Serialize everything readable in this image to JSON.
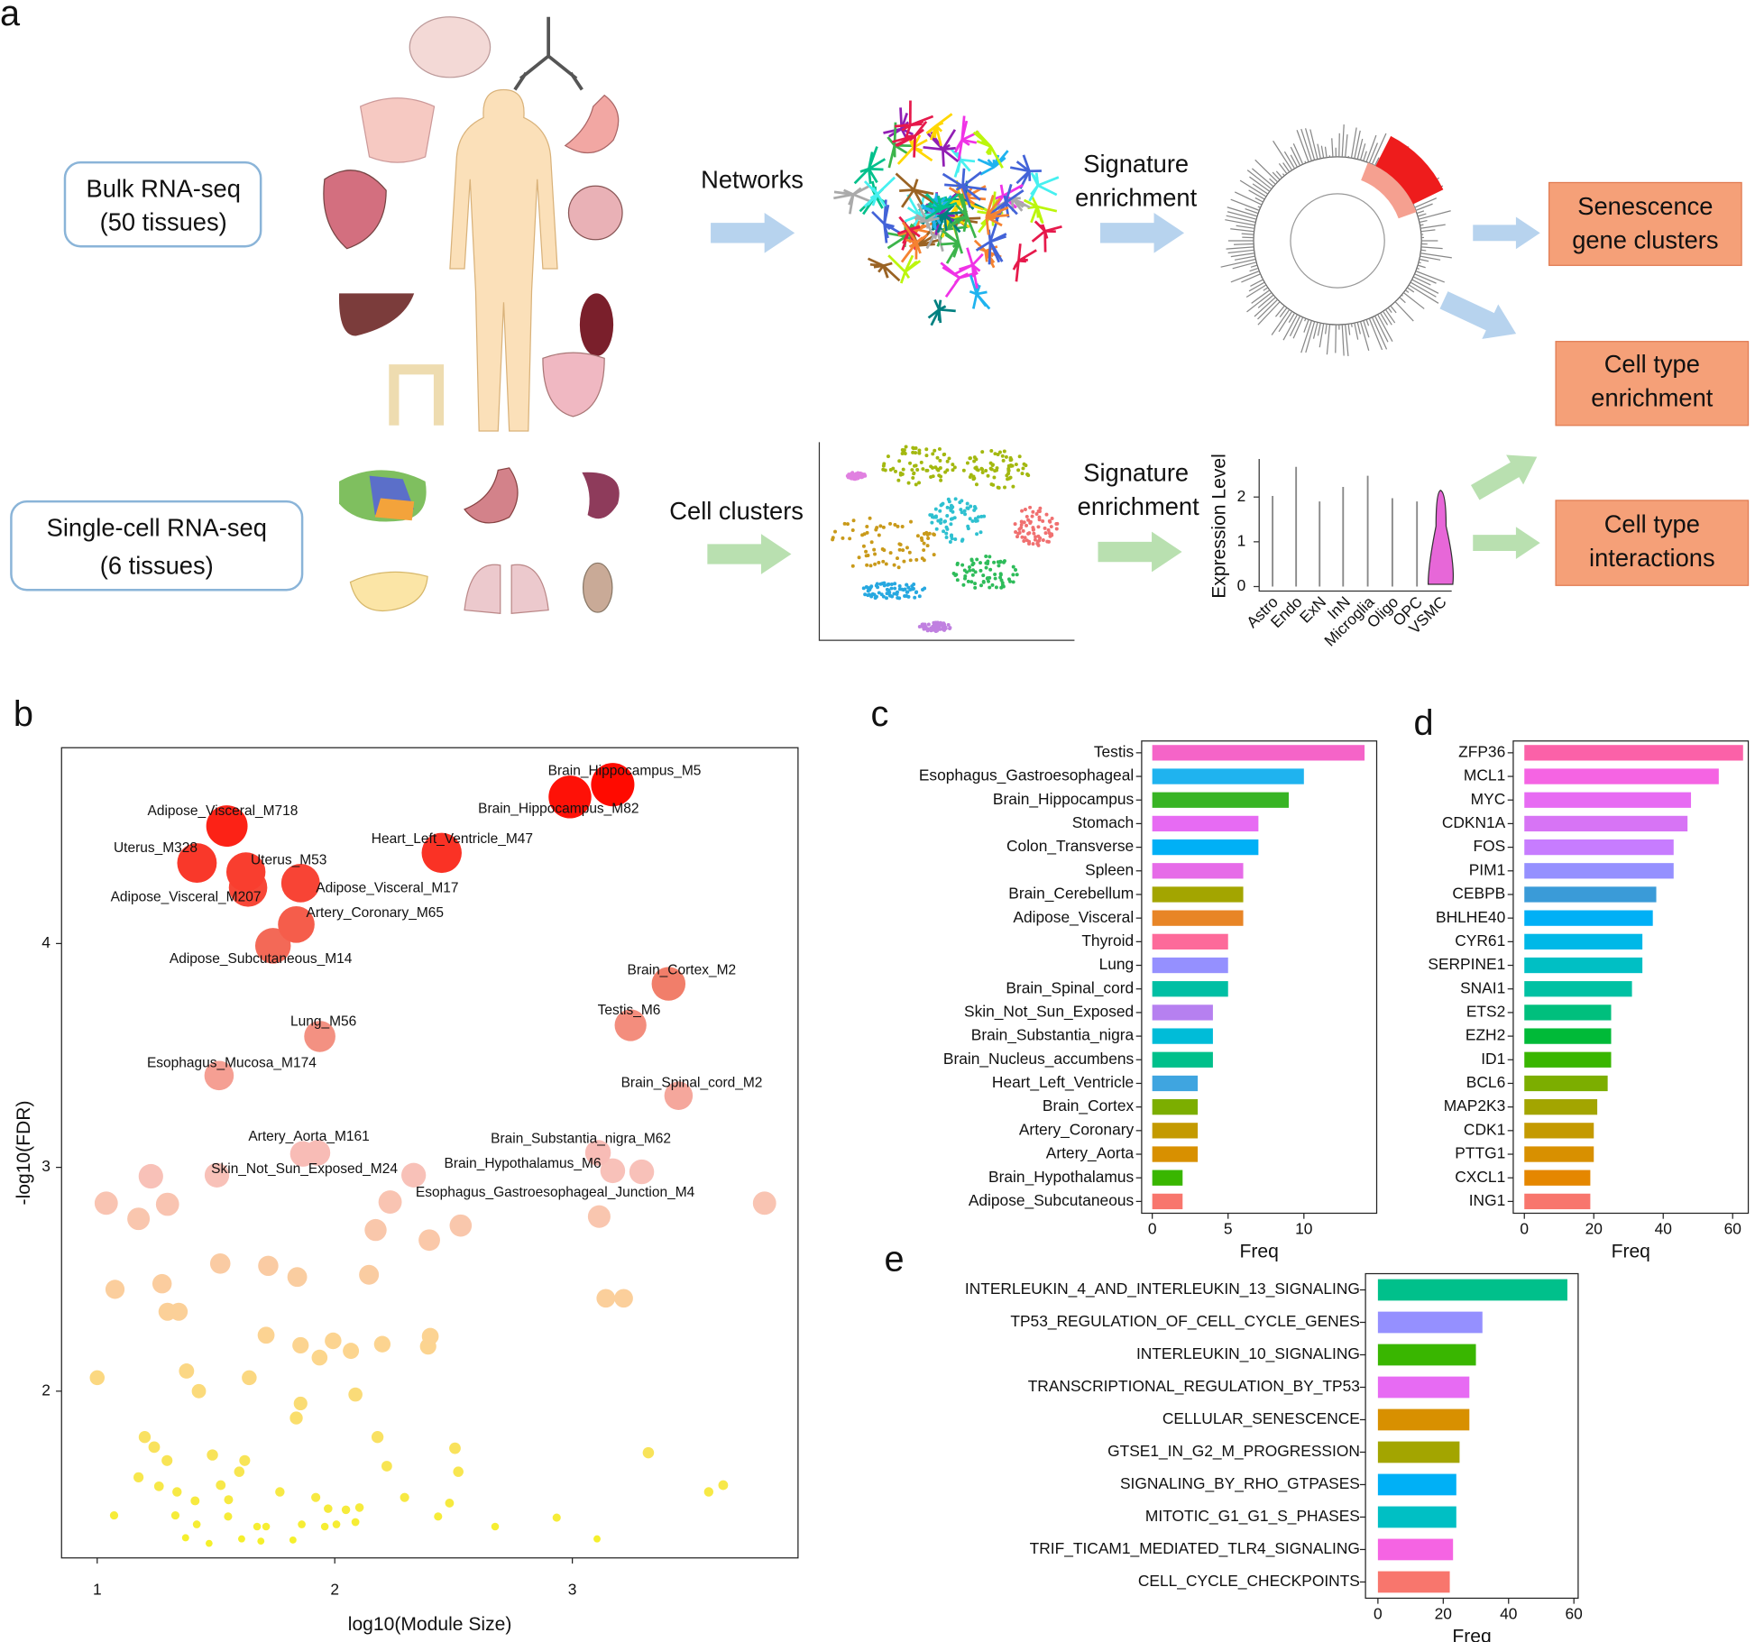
{
  "diagram": {
    "panel": "a",
    "bulk": {
      "title": "Bulk RNA-seq",
      "subtitle": "(50 tissues)"
    },
    "single_cell": {
      "title": "Single-cell RNA-seq",
      "subtitle": "(6 tissues)"
    },
    "steps": {
      "networks": "Networks",
      "bulk_enrichment": [
        "Signature",
        "enrichment"
      ],
      "cell_clusters": "Cell clusters",
      "sc_enrichment": [
        "Signature",
        "enrichment"
      ]
    },
    "outputs": [
      [
        "Senescence",
        "gene clusters"
      ],
      [
        "Cell type",
        "enrichment"
      ],
      [
        "Cell type",
        "interactions"
      ]
    ],
    "violin": {
      "ylabel": "Expression Level",
      "yticks": [
        0,
        1,
        2
      ],
      "categories": [
        "Astro",
        "Endo",
        "ExN",
        "InN",
        "Microglia",
        "Oligo",
        "OPC",
        "VSMC"
      ]
    }
  },
  "chart_data": [
    {
      "type": "scatter",
      "panel": "b",
      "xlabel": "log10(Module Size)",
      "ylabel": "-log10(FDR)",
      "xlim": [
        0.85,
        3.95
      ],
      "ylim": [
        1.255,
        4.875
      ],
      "xticks": [
        1,
        2,
        3
      ],
      "yticks": [
        2,
        3,
        4
      ],
      "color_scale": [
        "#f5f02a",
        "#fcd58e",
        "#f8c0bb",
        "#f17a66",
        "#ff0a00"
      ],
      "labels": [
        "Brain_Hippocampus_M5",
        "Brain_Hippocampus_M82",
        "Adipose_Visceral_M718",
        "Uterus_M328",
        "Uterus_M53",
        "Heart_Left_Ventricle_M47",
        "Adipose_Visceral_M207",
        "Adipose_Visceral_M17",
        "Artery_Coronary_M65",
        "Adipose_Subcutaneous_M14",
        "Brain_Cortex_M2",
        "Testis_M6",
        "Lung_M56",
        "Esophagus_Mucosa_M174",
        "Brain_Spinal_cord_M2",
        "Artery_Aorta_M161",
        "Skin_Not_Sun_Exposed_M24",
        "Brain_Substantia_nigra_M62",
        "Brain_Hypothalamus_M6",
        "Esophagus_Gastroesophageal_Junction_M4",
        null,
        null,
        null,
        null,
        null,
        null,
        null,
        null,
        null,
        null,
        null,
        null,
        null,
        null,
        null,
        null,
        null,
        null,
        null,
        null,
        null,
        null,
        null,
        null,
        null,
        null,
        null,
        null,
        null,
        null,
        null,
        null,
        null,
        null,
        null,
        null,
        null,
        null,
        null,
        null,
        null,
        null,
        null,
        null,
        null,
        null,
        null,
        null,
        null,
        null,
        null,
        null,
        null,
        null,
        null,
        null,
        null,
        null,
        null,
        null,
        null,
        null,
        null,
        null,
        null,
        null,
        null,
        null,
        null,
        null,
        null,
        null,
        null,
        null,
        null,
        null,
        null,
        null,
        null,
        null,
        null,
        null
      ],
      "x": [
        3.17,
        2.99,
        1.546,
        1.42,
        1.626,
        2.45,
        1.635,
        1.856,
        1.838,
        1.74,
        3.405,
        3.245,
        1.937,
        1.513,
        3.447,
        1.927,
        1.504,
        3.108,
        3.17,
        3.113,
        1.226,
        1.038,
        1.174,
        1.296,
        1.866,
        2.332,
        2.233,
        2.172,
        2.398,
        2.53,
        3.292,
        3.809,
        1.518,
        1.72,
        1.842,
        2.144,
        1.273,
        1.075,
        1.296,
        1.343,
        3.141,
        3.216,
        1.711,
        2.402,
        2.393,
        1.856,
        1.993,
        1.936,
        2.068,
        2.2,
        1.376,
        1.64,
        1.0,
        1.428,
        1.856,
        2.087,
        1.838,
        2.18,
        1.2,
        1.24,
        1.294,
        1.485,
        1.621,
        1.598,
        1.174,
        2.219,
        2.506,
        2.52,
        3.32,
        3.574,
        3.635,
        1.26,
        1.336,
        1.52,
        1.553,
        1.769,
        1.412,
        1.92,
        1.972,
        2.047,
        2.104,
        2.294,
        2.483,
        1.071,
        1.329,
        1.419,
        1.551,
        1.673,
        1.711,
        1.861,
        1.958,
        2.007,
        2.087,
        2.435,
        2.675,
        2.934,
        1.608,
        1.689,
        1.824,
        1.471,
        3.104,
        1.372
      ],
      "y": [
        4.71,
        4.655,
        4.525,
        4.36,
        4.32,
        4.405,
        4.25,
        4.27,
        4.085,
        3.99,
        3.82,
        3.635,
        3.585,
        3.41,
        3.32,
        3.065,
        2.965,
        3.065,
        2.985,
        2.78,
        2.96,
        2.84,
        2.77,
        2.835,
        3.06,
        2.965,
        2.845,
        2.72,
        2.675,
        2.74,
        2.98,
        2.84,
        2.57,
        2.56,
        2.51,
        2.52,
        2.48,
        2.455,
        2.355,
        2.355,
        2.415,
        2.415,
        2.25,
        2.245,
        2.2,
        2.205,
        2.225,
        2.15,
        2.18,
        2.21,
        2.09,
        2.06,
        2.06,
        2.0,
        1.945,
        1.985,
        1.88,
        1.795,
        1.795,
        1.75,
        1.69,
        1.715,
        1.69,
        1.64,
        1.615,
        1.665,
        1.745,
        1.64,
        1.725,
        1.55,
        1.58,
        1.575,
        1.55,
        1.58,
        1.515,
        1.55,
        1.51,
        1.525,
        1.475,
        1.47,
        1.48,
        1.525,
        1.5,
        1.445,
        1.445,
        1.405,
        1.44,
        1.395,
        1.395,
        1.405,
        1.395,
        1.405,
        1.415,
        1.44,
        1.395,
        1.435,
        1.34,
        1.33,
        1.335,
        1.32,
        1.34,
        1.345
      ]
    },
    {
      "type": "hbar",
      "panel": "c",
      "xlabel": "Freq",
      "xlim": [
        -0.7,
        14.8
      ],
      "xticks": [
        0,
        5,
        10
      ],
      "categories": [
        "Testis",
        "Esophagus_Gastroesophageal",
        "Brain_Hippocampus",
        "Stomach",
        "Colon_Transverse",
        "Spleen",
        "Brain_Cerebellum",
        "Adipose_Visceral",
        "Thyroid",
        "Lung",
        "Brain_Spinal_cord",
        "Skin_Not_Sun_Exposed",
        "Brain_Substantia_nigra",
        "Brain_Nucleus_accumbens",
        "Heart_Left_Ventricle",
        "Brain_Cortex",
        "Artery_Coronary",
        "Artery_Aorta",
        "Brain_Hypothalamus",
        "Adipose_Subcutaneous"
      ],
      "values": [
        14,
        10,
        9,
        7,
        7,
        6,
        6,
        6,
        5,
        5,
        5,
        4,
        4,
        4,
        3,
        3,
        3,
        3,
        2,
        2
      ],
      "colors": [
        "#f564c8",
        "#1fb3ef",
        "#38b424",
        "#e76bf3",
        "#00b0f6",
        "#e66be8",
        "#a3a500",
        "#e88526",
        "#fd6a9a",
        "#9590ff",
        "#00bfa4",
        "#b680f0",
        "#00bcd8",
        "#00c08b",
        "#3fa5e0",
        "#7cae00",
        "#c49a00",
        "#d89000",
        "#39b600",
        "#f8766d"
      ]
    },
    {
      "type": "hbar",
      "panel": "d",
      "xlabel": "Freq",
      "xlim": [
        -3.2,
        64.5
      ],
      "xticks": [
        0,
        20,
        40,
        60
      ],
      "categories": [
        "ZFP36",
        "MCL1",
        "MYC",
        "CDKN1A",
        "FOS",
        "PIM1",
        "CEBPB",
        "BHLHE40",
        "CYR61",
        "SERPINE1",
        "SNAI1",
        "ETS2",
        "EZH2",
        "ID1",
        "BCL6",
        "MAP2K3",
        "CDK1",
        "PTTG1",
        "CXCL1",
        "ING1"
      ],
      "values": [
        63,
        56,
        48,
        47,
        43,
        43,
        38,
        37,
        34,
        34,
        31,
        25,
        25,
        25,
        24,
        21,
        20,
        20,
        19,
        19
      ],
      "colors": [
        "#fb61a8",
        "#f564e3",
        "#e76bf3",
        "#d774f5",
        "#c77cff",
        "#9590ff",
        "#3a9bd8",
        "#00b0f6",
        "#00b8e7",
        "#00bfc4",
        "#00c1a3",
        "#00bf7d",
        "#00ba38",
        "#39b600",
        "#7cae00",
        "#a3a500",
        "#c49a00",
        "#d89000",
        "#e58700",
        "#f8766d"
      ]
    },
    {
      "type": "hbar",
      "panel": "e",
      "xlabel": "Freq",
      "xlim": [
        -3.8,
        61.3
      ],
      "xticks": [
        0,
        20,
        40,
        60
      ],
      "categories": [
        "INTERLEUKIN_4_AND_INTERLEUKIN_13_SIGNALING",
        "TP53_REGULATION_OF_CELL_CYCLE_GENES",
        "INTERLEUKIN_10_SIGNALING",
        "TRANSCRIPTIONAL_REGULATION_BY_TP53",
        "CELLULAR_SENESCENCE",
        "GTSE1_IN_G2_M_PROGRESSION",
        "SIGNALING_BY_RHO_GTPASES",
        "MITOTIC_G1_G1_S_PHASES",
        "TRIF_TICAM1_MEDIATED_TLR4_SIGNALING",
        "CELL_CYCLE_CHECKPOINTS"
      ],
      "values": [
        58,
        32,
        30,
        28,
        28,
        25,
        24,
        24,
        23,
        22
      ],
      "colors": [
        "#00c08b",
        "#9590ff",
        "#39b600",
        "#e76bf3",
        "#d89000",
        "#a3a500",
        "#00b0f6",
        "#00bfc4",
        "#f564e3",
        "#f8766d"
      ]
    }
  ]
}
